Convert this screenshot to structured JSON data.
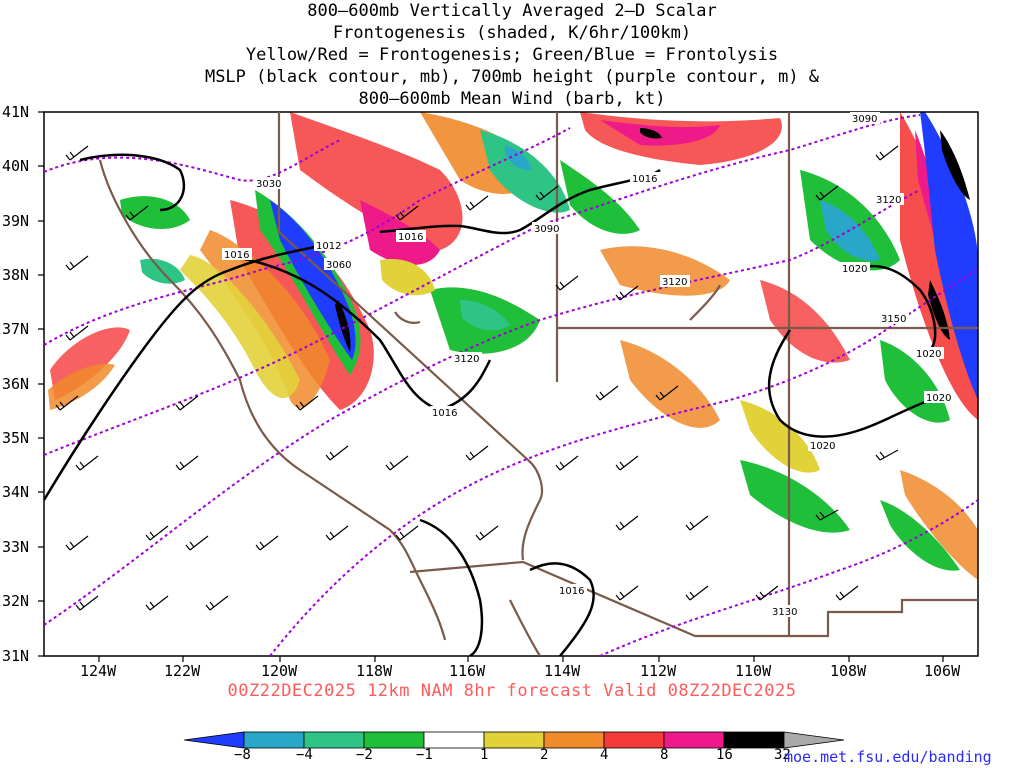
{
  "title_lines": [
    "800–600mb Vertically Averaged 2–D Scalar",
    "Frontogenesis (shaded, K/6hr/100km)",
    "Yellow/Red = Frontogenesis;  Green/Blue = Frontolysis",
    "MSLP (black contour, mb), 700mb height (purple contour, m) &",
    "800–600mb Mean Wind (barb, kt)"
  ],
  "subtitle": "00Z22DEC2025 12km NAM 8hr forecast Valid 08Z22DEC2025",
  "source_url": "moe.met.fsu.edu/banding",
  "lat_labels": [
    "41N",
    "40N",
    "39N",
    "38N",
    "37N",
    "36N",
    "35N",
    "34N",
    "33N",
    "32N",
    "31N"
  ],
  "lon_labels": [
    "124W",
    "122W",
    "120W",
    "118W",
    "116W",
    "114W",
    "112W",
    "110W",
    "108W",
    "106W"
  ],
  "mslp_labels": [
    "1012",
    "1016",
    "1016",
    "1016",
    "1016",
    "1016",
    "1020",
    "1020",
    "1020",
    "1020"
  ],
  "height_labels": [
    "3030",
    "3060",
    "3090",
    "3090",
    "3120",
    "3120",
    "3120",
    "3130",
    "3150"
  ],
  "colorbar": {
    "labels": [
      "−8",
      "−4",
      "−2",
      "−1",
      "1",
      "2",
      "4",
      "8",
      "16",
      "32"
    ],
    "colors": [
      "#1f3cff",
      "#2aa6c8",
      "#2ec486",
      "#1fbf3a",
      "#ffffff",
      "#e2d23a",
      "#f08a2a",
      "#f53a3a",
      "#ee1a8a",
      "#000000"
    ]
  },
  "colors": {
    "mslp": "#000000",
    "height": "#a000d8",
    "borders": "#7a5a48",
    "subtitle": "#ff5a5a",
    "url": "#2a2aff"
  }
}
